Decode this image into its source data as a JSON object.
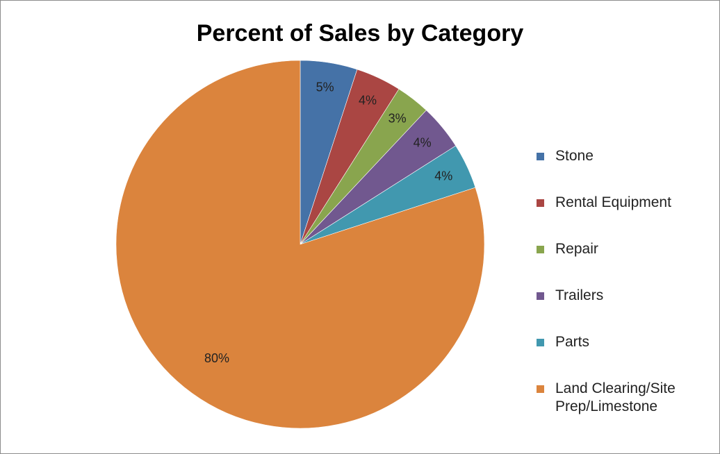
{
  "chart_data": {
    "type": "pie",
    "title": "Percent of Sales by Category",
    "categories": [
      "Stone",
      "Rental Equipment",
      "Repair",
      "Trailers",
      "Parts",
      "Land Clearing/Site Prep/Limestone"
    ],
    "values": [
      5,
      4,
      3,
      4,
      4,
      80
    ],
    "data_labels": [
      "5%",
      "4%",
      "3%",
      "4%",
      "4%",
      "80%"
    ],
    "colors": [
      "#4572a7",
      "#aa4643",
      "#89a54e",
      "#71588f",
      "#4198af",
      "#db843d"
    ],
    "start_angle_deg": 0,
    "direction": "clockwise",
    "legend_position": "right"
  }
}
